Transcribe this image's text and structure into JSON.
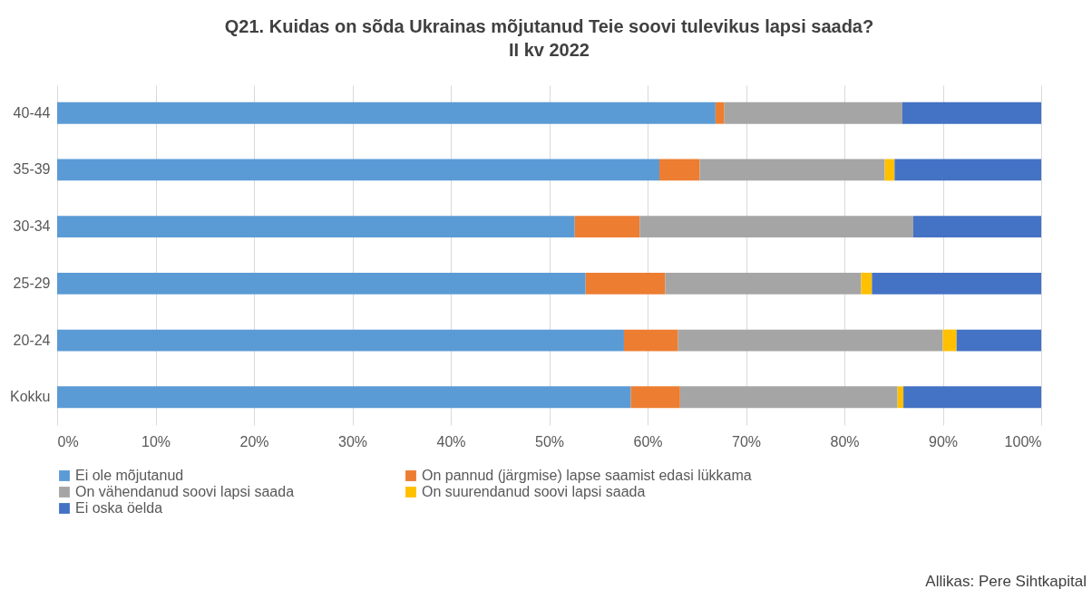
{
  "chart_data": {
    "type": "bar",
    "orientation": "horizontal",
    "stacked": true,
    "title": "Q21. Kuidas on sõda Ukrainas mõjutanud Teie soovi tulevikus lapsi saada?",
    "subtitle": "II kv 2022",
    "categories": [
      "40-44",
      "35-39",
      "30-34",
      "25-29",
      "20-24",
      "Kokku"
    ],
    "series": [
      {
        "name": "Ei ole mõjutanud",
        "color": "#5b9bd5",
        "values": [
          66.9,
          61.2,
          52.6,
          53.7,
          57.6,
          58.3
        ]
      },
      {
        "name": "On pannud (järgmise) lapse saamist edasi lükkama",
        "color": "#ed7d31",
        "values": [
          0.9,
          4.1,
          6.6,
          8.1,
          5.5,
          5.0
        ]
      },
      {
        "name": "On vähendanud soovi lapsi saada",
        "color": "#a5a5a5",
        "values": [
          18.1,
          18.8,
          27.8,
          19.9,
          26.9,
          22.1
        ]
      },
      {
        "name": "On suurendanud soovi lapsi saada",
        "color": "#ffc000",
        "values": [
          0,
          1.0,
          0,
          1.1,
          1.4,
          0.6
        ]
      },
      {
        "name": "Ei oska öelda",
        "color": "#4472c4",
        "values": [
          14.1,
          14.9,
          13.0,
          17.2,
          8.6,
          14.0
        ]
      }
    ],
    "xlim": [
      0,
      100
    ],
    "xticks": [
      {
        "value": 0,
        "label": "0%"
      },
      {
        "value": 10,
        "label": "10%"
      },
      {
        "value": 20,
        "label": "20%"
      },
      {
        "value": 30,
        "label": "30%"
      },
      {
        "value": 40,
        "label": "40%"
      },
      {
        "value": 50,
        "label": "50%"
      },
      {
        "value": 60,
        "label": "60%"
      },
      {
        "value": 70,
        "label": "70%"
      },
      {
        "value": 80,
        "label": "80%"
      },
      {
        "value": 90,
        "label": "90%"
      },
      {
        "value": 100,
        "label": "100%"
      }
    ],
    "grid": "x",
    "legend": "bottom",
    "annotations": [
      "Allikas: Pere Sihtkapital"
    ]
  }
}
